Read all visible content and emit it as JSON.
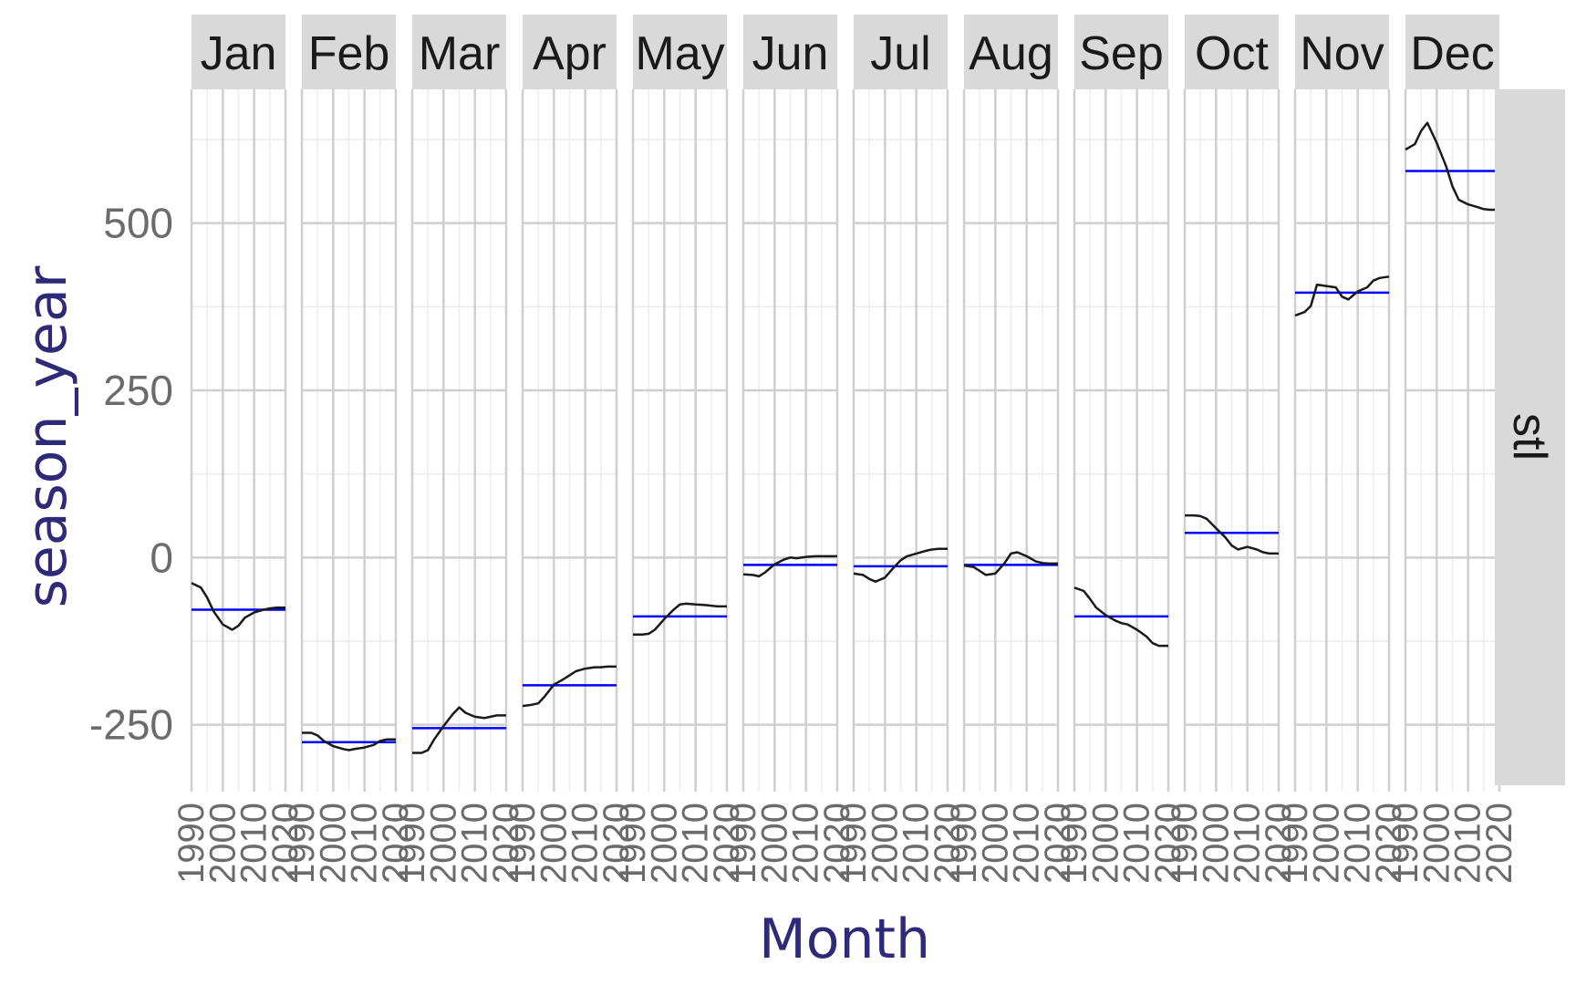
{
  "chart_data": {
    "type": "line",
    "subtype": "seasonal-subseries",
    "xlabel": "Month",
    "ylabel": "season_year",
    "row_strip": "stl",
    "ylim": [
      -350,
      700
    ],
    "yticks": [
      -250,
      0,
      250,
      500
    ],
    "x_range": [
      1990,
      2020
    ],
    "x_ticks": [
      1990,
      2000,
      2010,
      2020
    ],
    "grid": true,
    "colors": {
      "series": "#1a1a1a",
      "mean": "#0000ff",
      "strip": "#d9d9d9",
      "grid_major": "#cfcfcf",
      "grid_minor": "#ececec"
    },
    "panels": [
      {
        "month": "Jan",
        "x": [
          1990,
          1993,
          1995,
          1997,
          2000,
          2003,
          2005,
          2007,
          2010,
          2013,
          2015,
          2017,
          2020
        ],
        "values": [
          -38,
          -45,
          -60,
          -80,
          -100,
          -108,
          -102,
          -90,
          -82,
          -78,
          -76,
          -75,
          -75
        ],
        "mean": -78
      },
      {
        "month": "Feb",
        "x": [
          1990,
          1993,
          1995,
          1997,
          2000,
          2003,
          2005,
          2007,
          2010,
          2013,
          2015,
          2017,
          2020
        ],
        "values": [
          -262,
          -262,
          -266,
          -274,
          -282,
          -286,
          -288,
          -286,
          -284,
          -280,
          -274,
          -272,
          -272
        ],
        "mean": -276
      },
      {
        "month": "Mar",
        "x": [
          1990,
          1993,
          1995,
          1997,
          2000,
          2003,
          2005,
          2007,
          2010,
          2013,
          2015,
          2017,
          2020
        ],
        "values": [
          -292,
          -292,
          -288,
          -272,
          -252,
          -234,
          -224,
          -232,
          -238,
          -240,
          -238,
          -236,
          -236
        ],
        "mean": -255
      },
      {
        "month": "Apr",
        "x": [
          1990,
          1993,
          1995,
          1997,
          2000,
          2003,
          2005,
          2007,
          2010,
          2013,
          2015,
          2017,
          2020
        ],
        "values": [
          -222,
          -220,
          -218,
          -208,
          -190,
          -182,
          -176,
          -170,
          -166,
          -164,
          -164,
          -163,
          -163
        ],
        "mean": -191
      },
      {
        "month": "May",
        "x": [
          1990,
          1993,
          1995,
          1997,
          2000,
          2003,
          2005,
          2007,
          2010,
          2013,
          2015,
          2017,
          2020
        ],
        "values": [
          -115,
          -115,
          -114,
          -108,
          -92,
          -78,
          -70,
          -69,
          -70,
          -71,
          -72,
          -73,
          -73
        ],
        "mean": -88
      },
      {
        "month": "Jun",
        "x": [
          1990,
          1993,
          1995,
          1997,
          2000,
          2003,
          2005,
          2007,
          2010,
          2013,
          2015,
          2017,
          2020
        ],
        "values": [
          -25,
          -26,
          -28,
          -22,
          -10,
          -3,
          0,
          -1,
          1,
          2,
          2,
          2,
          2
        ],
        "mean": -11
      },
      {
        "month": "Jul",
        "x": [
          1990,
          1993,
          1995,
          1997,
          2000,
          2003,
          2005,
          2007,
          2010,
          2013,
          2015,
          2017,
          2020
        ],
        "values": [
          -24,
          -26,
          -32,
          -36,
          -30,
          -14,
          -4,
          2,
          6,
          10,
          12,
          13,
          13
        ],
        "mean": -13
      },
      {
        "month": "Aug",
        "x": [
          1990,
          1993,
          1995,
          1997,
          2000,
          2003,
          2005,
          2007,
          2010,
          2013,
          2015,
          2017,
          2020
        ],
        "values": [
          -12,
          -14,
          -20,
          -26,
          -24,
          -8,
          6,
          8,
          2,
          -6,
          -8,
          -9,
          -9
        ],
        "mean": -11
      },
      {
        "month": "Sep",
        "x": [
          1990,
          1993,
          1995,
          1997,
          2000,
          2003,
          2005,
          2007,
          2010,
          2013,
          2015,
          2017,
          2020
        ],
        "values": [
          -45,
          -50,
          -62,
          -75,
          -86,
          -94,
          -98,
          -100,
          -108,
          -118,
          -128,
          -132,
          -132
        ],
        "mean": -88
      },
      {
        "month": "Oct",
        "x": [
          1990,
          1993,
          1995,
          1997,
          2000,
          2003,
          2005,
          2007,
          2010,
          2013,
          2015,
          2017,
          2020
        ],
        "values": [
          63,
          63,
          62,
          58,
          44,
          30,
          18,
          12,
          16,
          12,
          8,
          6,
          6
        ],
        "mean": 37
      },
      {
        "month": "Nov",
        "x": [
          1990,
          1993,
          1995,
          1997,
          2000,
          2003,
          2005,
          2007,
          2010,
          2013,
          2015,
          2017,
          2020
        ],
        "values": [
          362,
          367,
          376,
          408,
          406,
          404,
          390,
          386,
          398,
          404,
          414,
          418,
          420
        ],
        "mean": 396
      },
      {
        "month": "Dec",
        "x": [
          1990,
          1993,
          1995,
          1997,
          2000,
          2003,
          2005,
          2007,
          2010,
          2013,
          2015,
          2017,
          2020
        ],
        "values": [
          610,
          618,
          638,
          650,
          620,
          585,
          555,
          535,
          528,
          524,
          521,
          520,
          520
        ],
        "mean": 578
      }
    ]
  }
}
